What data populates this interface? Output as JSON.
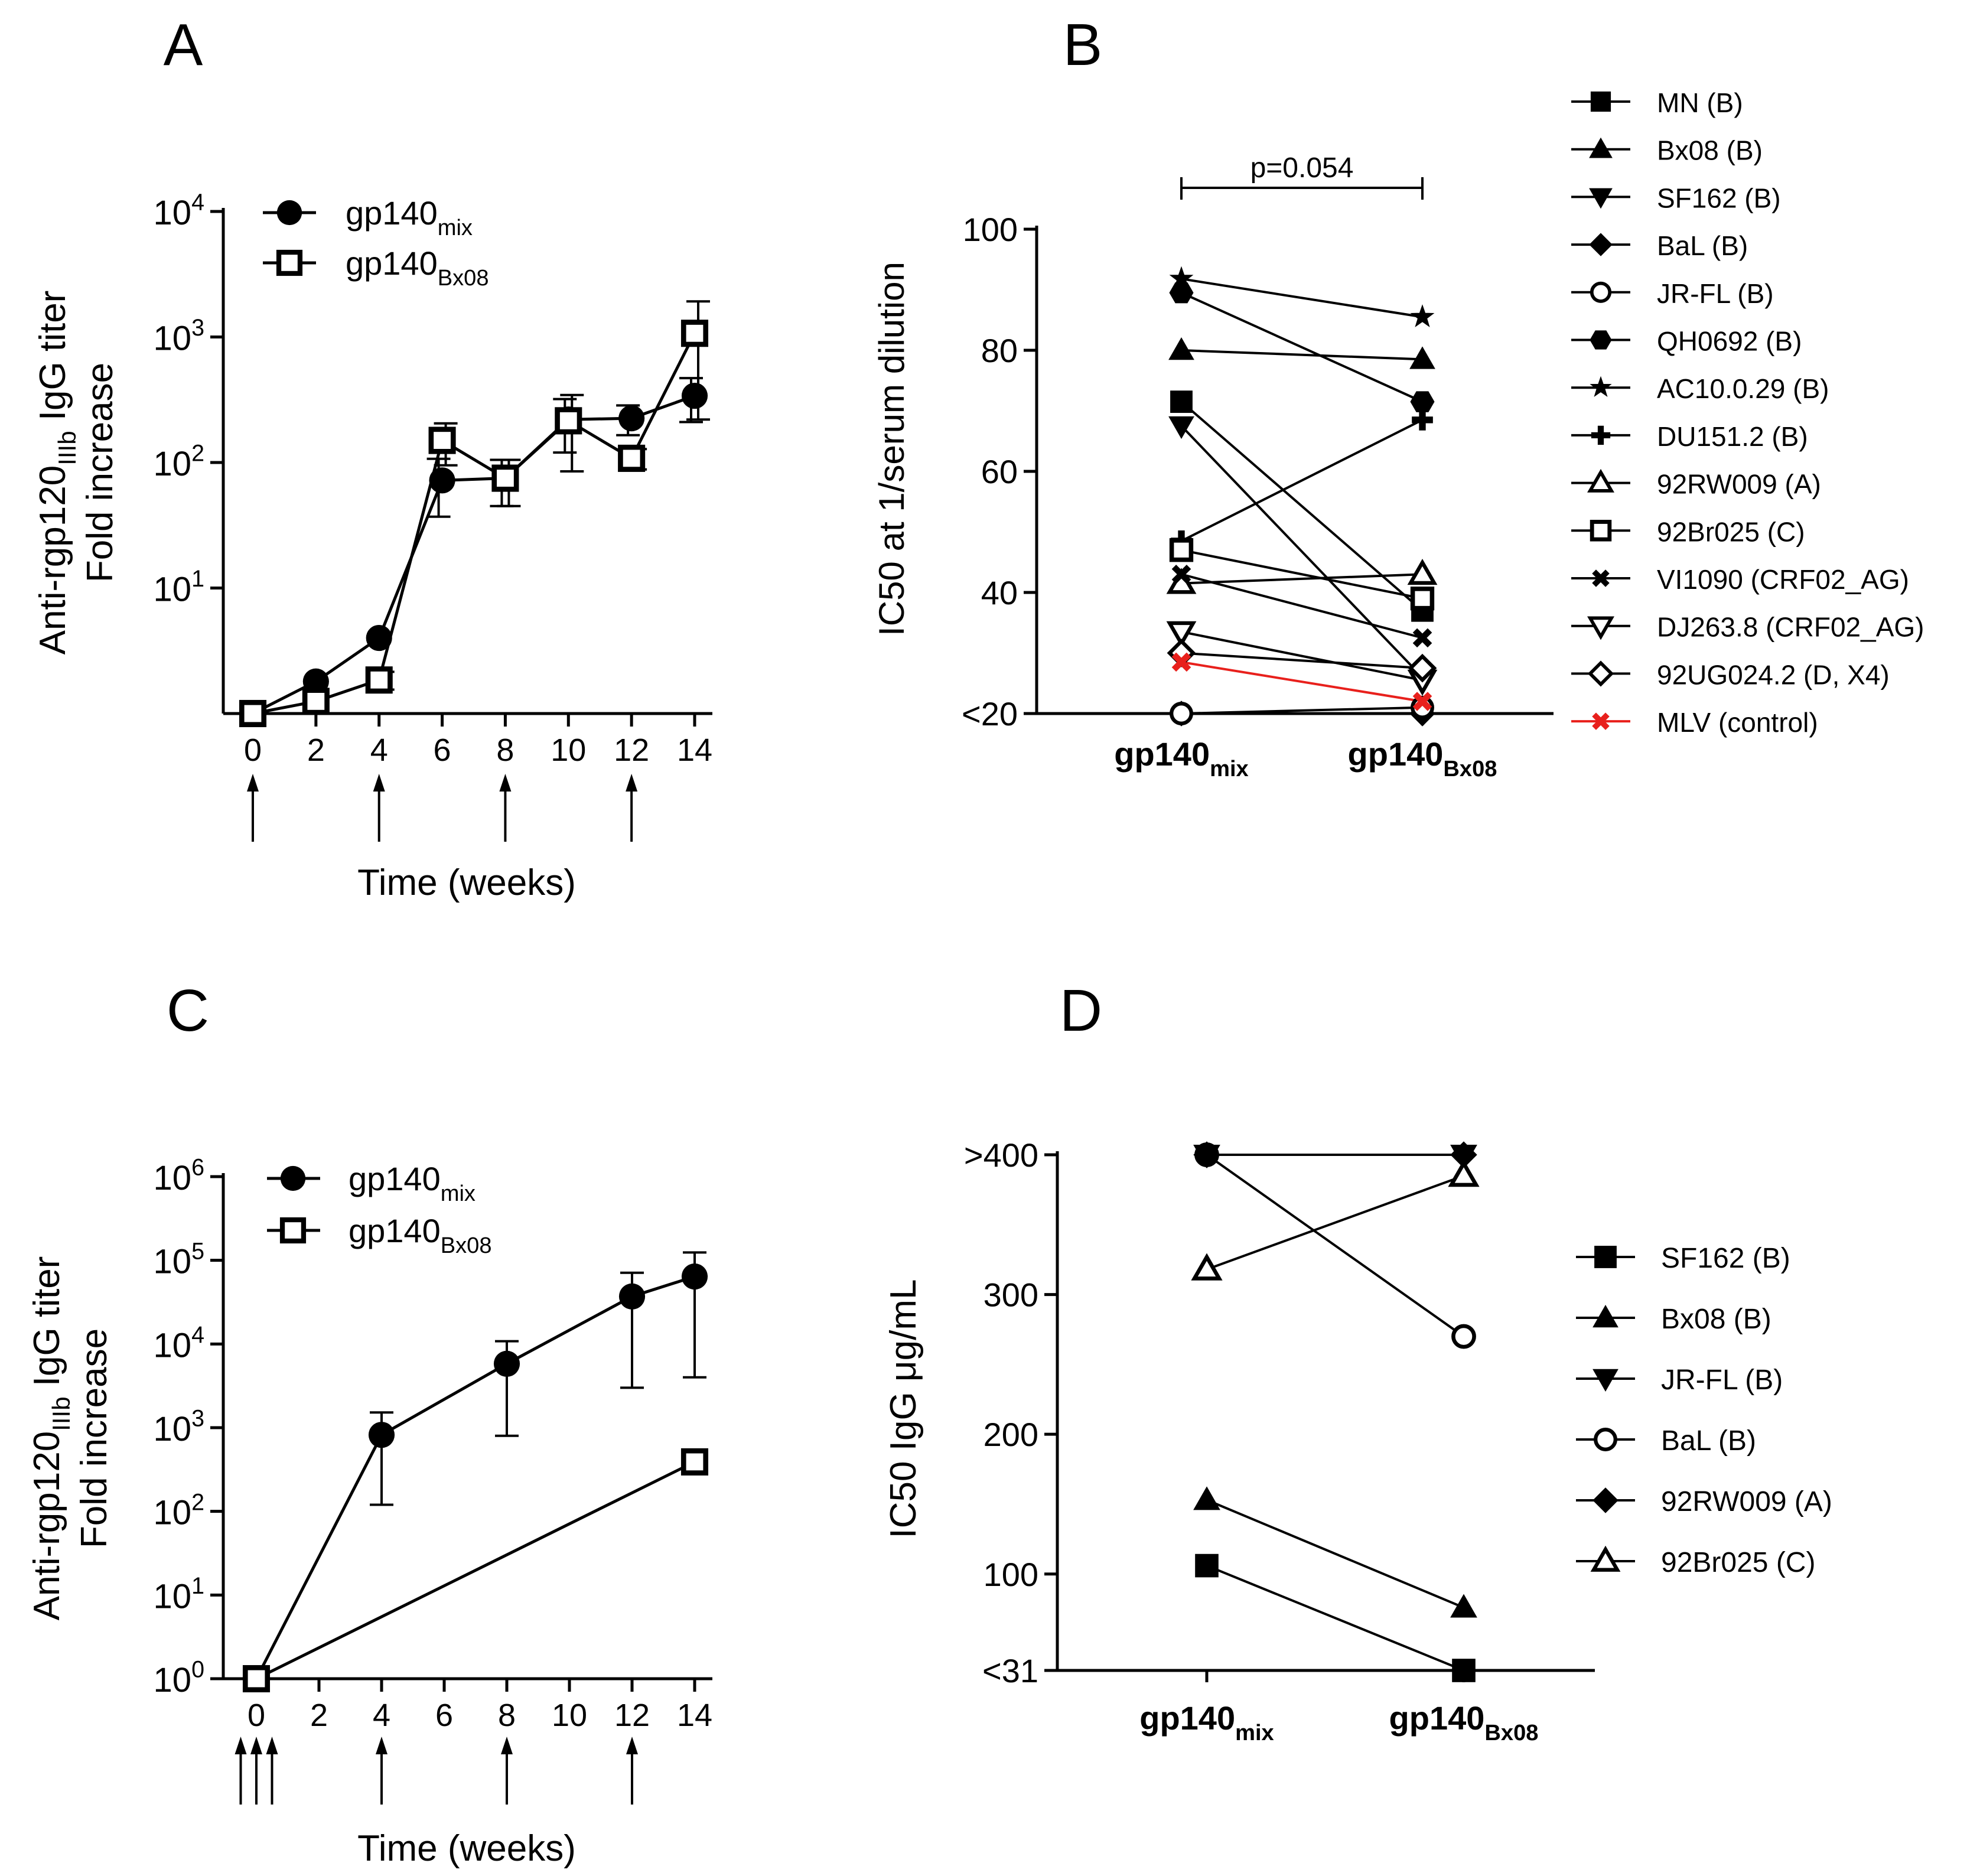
{
  "colors": {
    "ink": "#000000",
    "control": "#e8201c"
  },
  "panels": {
    "A": {
      "letter": "A",
      "ylabel_line1": {
        "pre": "Anti-rgp120",
        "sub": "IIIb",
        "post": " IgG titer"
      },
      "ylabel_line2": "Fold increase",
      "xlabel": "Time (weeks)",
      "xticks": [
        "0",
        "2",
        "4",
        "6",
        "8",
        "10",
        "12",
        "14"
      ],
      "yticks": [
        {
          "base": "10",
          "exp": "1"
        },
        {
          "base": "10",
          "exp": "2"
        },
        {
          "base": "10",
          "exp": "3"
        },
        {
          "base": "10",
          "exp": "4"
        }
      ],
      "legend": [
        {
          "base": "gp140",
          "sub": "mix"
        },
        {
          "base": "gp140",
          "sub": "Bx08"
        }
      ]
    },
    "B": {
      "letter": "B",
      "ylabel": "IC50 at 1/serum dilution",
      "yticks": [
        "<20",
        "40",
        "60",
        "80",
        "100"
      ],
      "xcats": [
        {
          "base": "gp140",
          "sub": "mix"
        },
        {
          "base": "gp140",
          "sub": "Bx08"
        }
      ],
      "pvalue": "p=0.054"
    },
    "C": {
      "letter": "C",
      "ylabel_line1": {
        "pre": "Anti-rgp120",
        "sub": "IIIb",
        "post": " IgG titer"
      },
      "ylabel_line2": "Fold increase",
      "xlabel": "Time (weeks)",
      "xticks": [
        "0",
        "2",
        "4",
        "6",
        "8",
        "10",
        "12",
        "14"
      ],
      "yticks": [
        {
          "base": "10",
          "exp": "0"
        },
        {
          "base": "10",
          "exp": "1"
        },
        {
          "base": "10",
          "exp": "2"
        },
        {
          "base": "10",
          "exp": "3"
        },
        {
          "base": "10",
          "exp": "4"
        },
        {
          "base": "10",
          "exp": "5"
        },
        {
          "base": "10",
          "exp": "6"
        }
      ],
      "legend": [
        {
          "base": "gp140",
          "sub": "mix"
        },
        {
          "base": "gp140",
          "sub": "Bx08"
        }
      ]
    },
    "D": {
      "letter": "D",
      "ylabel": "IC50 IgG μg/mL",
      "yticks": [
        "<31",
        "100",
        "200",
        "300",
        ">400"
      ],
      "xcats": [
        {
          "base": "gp140",
          "sub": "mix"
        },
        {
          "base": "gp140",
          "sub": "Bx08"
        }
      ]
    }
  },
  "chart_data": [
    {
      "id": "A",
      "type": "line",
      "title": "",
      "xlabel": "Time (weeks)",
      "ylabel": "Anti-rgp120IIIb IgG titer Fold increase",
      "yscale": "log",
      "ylim": [
        1,
        10000
      ],
      "xlim": [
        0,
        14
      ],
      "x": [
        0,
        2,
        4,
        6,
        8,
        10,
        12,
        14
      ],
      "immunization_weeks": [
        0,
        4,
        8,
        12
      ],
      "series": [
        {
          "name": "gp140mix",
          "marker": "circle-filled",
          "values": [
            1,
            1.8,
            4,
            72,
            75,
            220,
            225,
            340
          ],
          "err": [
            0,
            0,
            0,
            35,
            30,
            100,
            60,
            130
          ]
        },
        {
          "name": "gp140Bx08",
          "marker": "square-open",
          "values": [
            1,
            1.25,
            1.85,
            150,
            75,
            215,
            108,
            1070
          ],
          "err": [
            0,
            0,
            0.3,
            55,
            30,
            130,
            20,
            850
          ]
        }
      ]
    },
    {
      "id": "B",
      "type": "line",
      "xlabel": "",
      "ylabel": "IC50 at 1/serum dilution",
      "ylim": [
        20,
        100
      ],
      "categories": [
        "gp140mix",
        "gp140Bx08"
      ],
      "annotation": "p=0.054",
      "series": [
        {
          "name": "MN (B)",
          "marker": "square-filled",
          "values": [
            71.5,
            37
          ]
        },
        {
          "name": "Bx08 (B)",
          "marker": "triangle-up-filled",
          "values": [
            80,
            78.5
          ]
        },
        {
          "name": "SF162 (B)",
          "marker": "triangle-down-filled",
          "values": [
            67.5,
            26
          ]
        },
        {
          "name": "BaL (B)",
          "marker": "diamond-filled",
          "values": [
            20,
            20
          ]
        },
        {
          "name": "JR-FL (B)",
          "marker": "circle-open",
          "values": [
            20,
            21
          ]
        },
        {
          "name": "QH0692 (B)",
          "marker": "hexagon-filled",
          "values": [
            89.5,
            71.5
          ]
        },
        {
          "name": "AC10.0.29 (B)",
          "marker": "star",
          "values": [
            91.8,
            85.5
          ]
        },
        {
          "name": "DU151.2 (B)",
          "marker": "plus",
          "values": [
            48.5,
            68.5
          ]
        },
        {
          "name": "92RW009 (A)",
          "marker": "triangle-up-open",
          "values": [
            41.5,
            43
          ]
        },
        {
          "name": "92Br025 (C)",
          "marker": "square-open",
          "values": [
            47,
            39
          ]
        },
        {
          "name": "VI1090 (CRF02_AG)",
          "marker": "x",
          "values": [
            43,
            32.5
          ]
        },
        {
          "name": "DJ263.8 (CRF02_AG)",
          "marker": "triangle-down-open",
          "values": [
            33.5,
            25.5
          ]
        },
        {
          "name": "92UG024.2 (D, X4)",
          "marker": "diamond-open",
          "values": [
            30,
            27.5
          ]
        },
        {
          "name": "MLV (control)",
          "marker": "x-red",
          "color": "#e8201c",
          "values": [
            28.5,
            22
          ]
        }
      ]
    },
    {
      "id": "C",
      "type": "line",
      "xlabel": "Time (weeks)",
      "ylabel": "Anti-rgp120IIIb IgG titer Fold increase",
      "yscale": "log",
      "ylim": [
        1,
        1000000
      ],
      "xlim": [
        0,
        14
      ],
      "immunization_weeks": [
        -0.5,
        0,
        0.5,
        4,
        8,
        12
      ],
      "series": [
        {
          "name": "gp140mix",
          "marker": "circle-filled",
          "x": [
            0,
            4,
            8,
            12,
            14
          ],
          "values": [
            1,
            820,
            5800,
            37000,
            64000
          ],
          "err": [
            0,
            700,
            5000,
            34000,
            60000
          ]
        },
        {
          "name": "gp140Bx08",
          "marker": "square-open",
          "x": [
            0,
            14
          ],
          "values": [
            1,
            390
          ],
          "err": [
            0,
            60
          ]
        }
      ]
    },
    {
      "id": "D",
      "type": "line",
      "xlabel": "",
      "ylabel": "IC50 IgG μg/mL",
      "ylim": [
        31,
        400
      ],
      "categories": [
        "gp140mix",
        "gp140Bx08"
      ],
      "series": [
        {
          "name": "SF162 (B)",
          "marker": "square-filled",
          "values": [
            106,
            31
          ]
        },
        {
          "name": "Bx08 (B)",
          "marker": "triangle-up-filled",
          "values": [
            153,
            76
          ]
        },
        {
          "name": "JR-FL (B)",
          "marker": "triangle-down-filled",
          "values": [
            400,
            400
          ]
        },
        {
          "name": "BaL (B)",
          "marker": "circle-open",
          "values": [
            400,
            270
          ]
        },
        {
          "name": "92RW009 (A)",
          "marker": "diamond-filled",
          "values": [
            400,
            400
          ]
        },
        {
          "name": "92Br025 (C)",
          "marker": "triangle-up-open",
          "values": [
            318,
            385
          ]
        }
      ]
    }
  ]
}
